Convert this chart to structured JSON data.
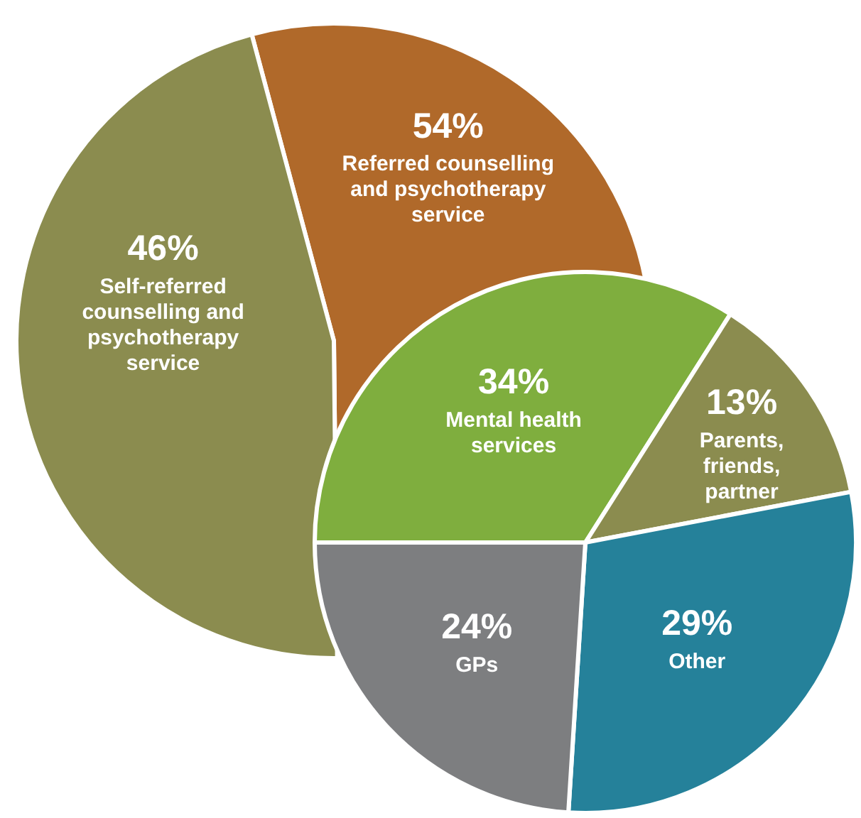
{
  "chart_data": [
    {
      "type": "pie",
      "categories": [
        "Referred counselling and psychotherapy service",
        "Self-referred counselling and psychotherapy service"
      ],
      "values": [
        54,
        46
      ],
      "colors": [
        "#b0692a",
        "#8b8c4f"
      ],
      "value_labels": [
        "54%",
        "46%"
      ]
    },
    {
      "type": "pie",
      "categories": [
        "Mental health services",
        "Parents, friends, partner",
        "Other",
        "GPs"
      ],
      "values": [
        34,
        13,
        29,
        24
      ],
      "colors": [
        "#7fae3e",
        "#8b8c4f",
        "#25819a",
        "#7d7e80"
      ],
      "value_labels": [
        "34%",
        "13%",
        "29%",
        "24%"
      ]
    }
  ]
}
